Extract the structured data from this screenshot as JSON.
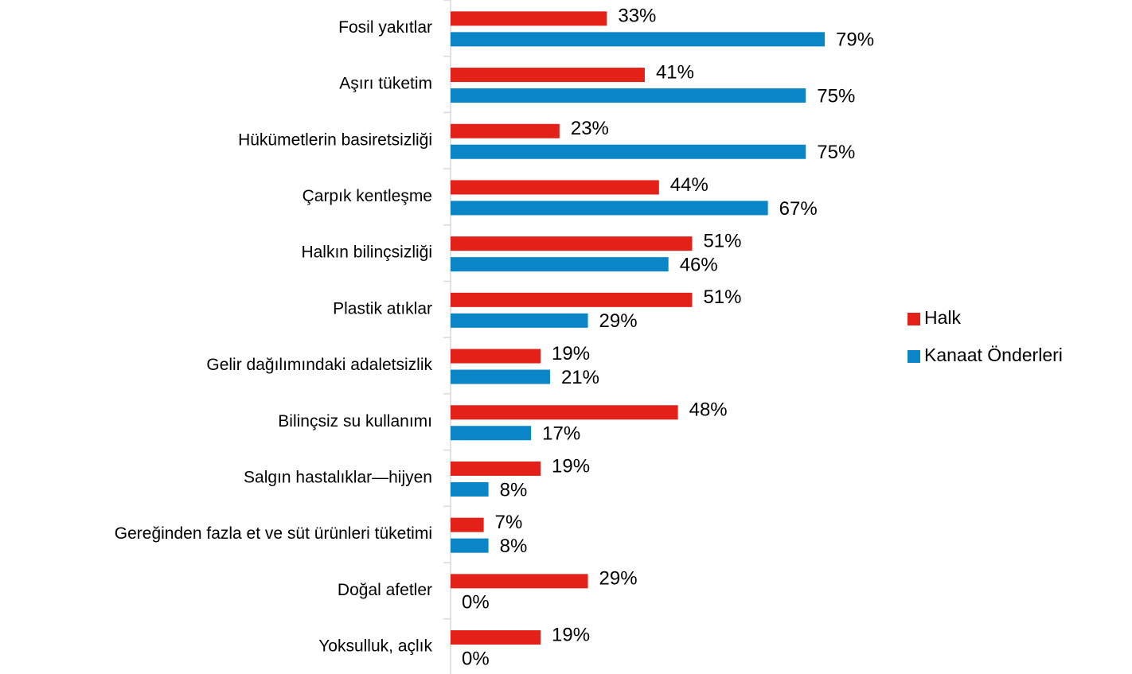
{
  "chart_data": {
    "type": "hbar",
    "categories": [
      "Fosil yakıtlar",
      "Aşırı tüketim",
      "Hükümetlerin basiretsizliği",
      "Çarpık kentleşme",
      "Halkın bilinçsizliği",
      "Plastik atıklar",
      "Gelir dağılımındaki adaletsizlik",
      "Bilinçsiz su kullanımı",
      "Salgın hastalıklar—hijyen",
      "Gereğinden fazla et ve süt ürünleri tüketimi",
      "Doğal afetler",
      "Yoksulluk, açlık"
    ],
    "series": [
      {
        "name": "Halk",
        "color": "#e32119",
        "values": [
          33,
          41,
          23,
          44,
          51,
          51,
          19,
          48,
          19,
          7,
          29,
          19
        ],
        "value_labels": [
          "33%",
          "41%",
          "23%",
          "44%",
          "51%",
          "51%",
          "19%",
          "48%",
          "19%",
          "7%",
          "29%",
          "19%"
        ]
      },
      {
        "name": "Kanaat Önderleri",
        "color": "#0a85c6",
        "values": [
          79,
          75,
          75,
          67,
          46,
          29,
          21,
          17,
          8,
          8,
          0,
          0
        ],
        "value_labels": [
          "79%",
          "75%",
          "75%",
          "67%",
          "46%",
          "29%",
          "21%",
          "17%",
          "8%",
          "8%",
          "0%",
          "0%"
        ]
      }
    ],
    "legend": "right"
  }
}
